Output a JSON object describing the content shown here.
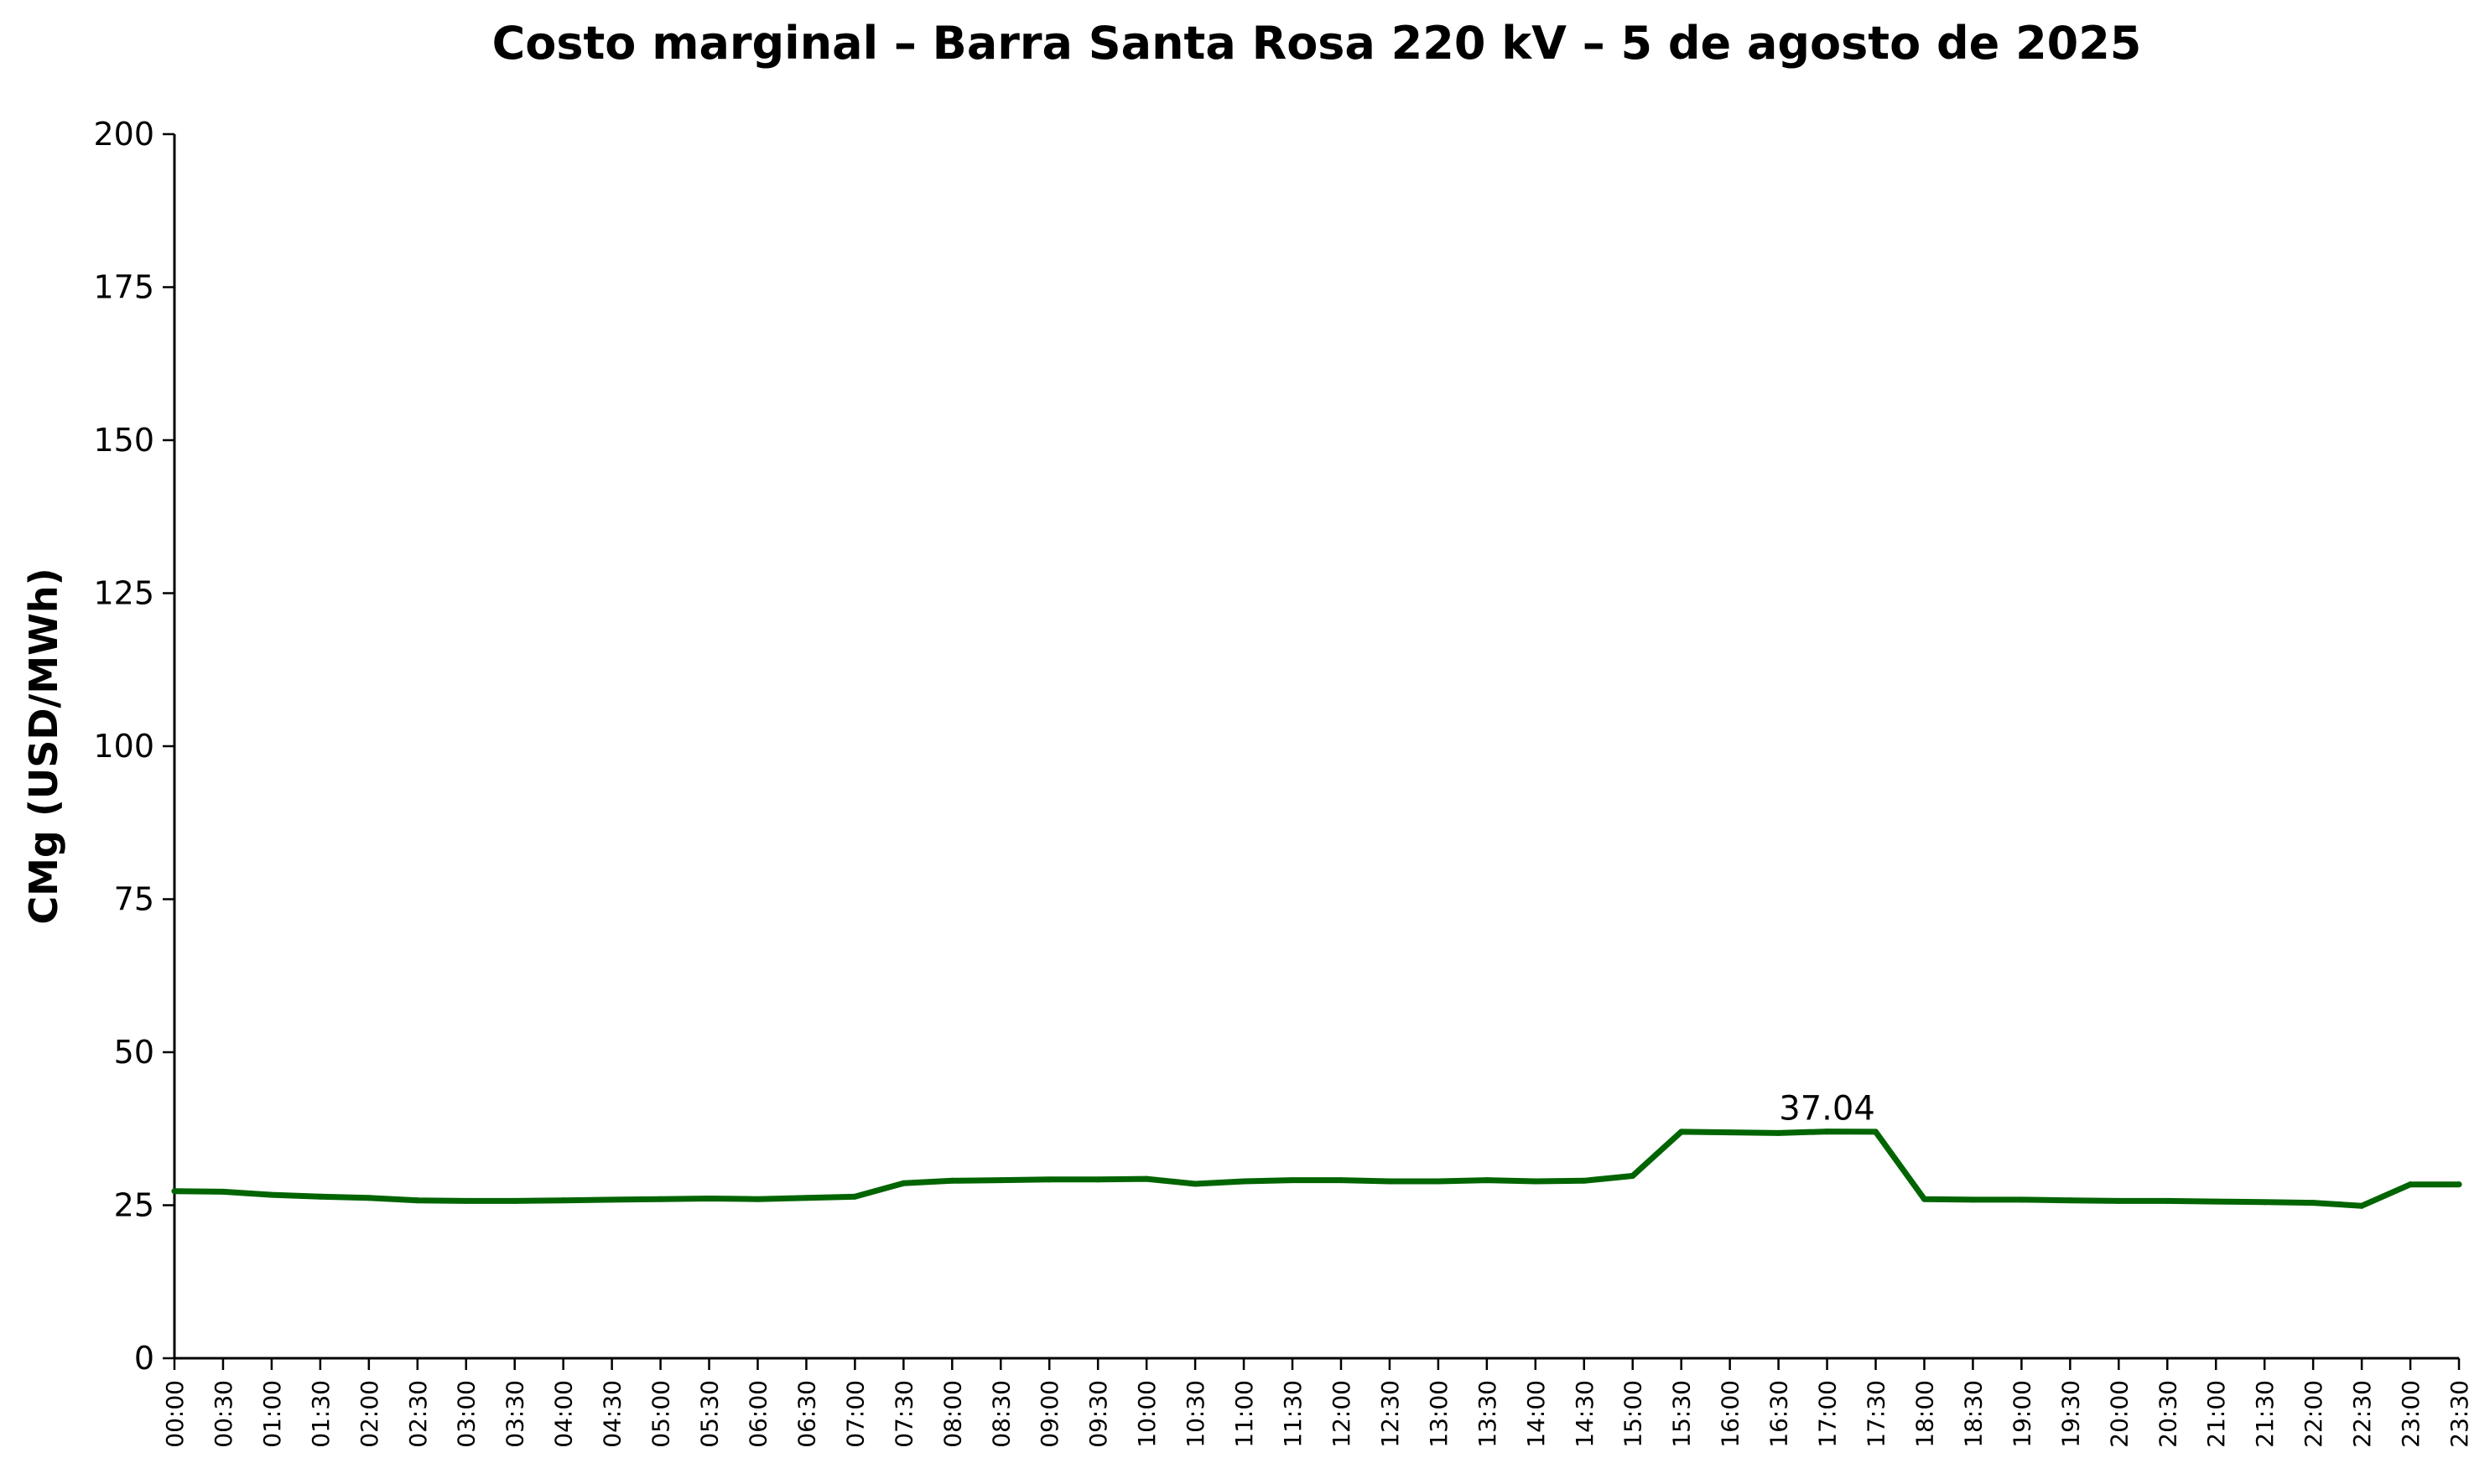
{
  "chart_data": {
    "type": "line",
    "title": "Costo marginal – Barra Santa Rosa 220 kV – 5 de agosto de 2025",
    "xlabel": "",
    "ylabel": "CMg (USD/MWh)",
    "ylim": [
      0,
      200
    ],
    "yticks": [
      0,
      25,
      50,
      75,
      100,
      125,
      150,
      175,
      200
    ],
    "grid": false,
    "categories": [
      "00:00",
      "00:30",
      "01:00",
      "01:30",
      "02:00",
      "02:30",
      "03:00",
      "03:30",
      "04:00",
      "04:30",
      "05:00",
      "05:30",
      "06:00",
      "06:30",
      "07:00",
      "07:30",
      "08:00",
      "08:30",
      "09:00",
      "09:30",
      "10:00",
      "10:30",
      "11:00",
      "11:30",
      "12:00",
      "12:30",
      "13:00",
      "13:30",
      "14:00",
      "14:30",
      "15:00",
      "15:30",
      "16:00",
      "16:30",
      "17:00",
      "17:30",
      "18:00",
      "18:30",
      "19:00",
      "19:30",
      "20:00",
      "20:30",
      "21:00",
      "21:30",
      "22:00",
      "22:30",
      "23:00",
      "23:30"
    ],
    "series": [
      {
        "color": "#006400",
        "values": [
          27.3,
          27.2,
          26.7,
          26.4,
          26.2,
          25.8,
          25.7,
          25.7,
          25.8,
          25.9,
          26.0,
          26.1,
          26.0,
          26.2,
          26.4,
          28.6,
          29.0,
          29.1,
          29.2,
          29.2,
          29.3,
          28.5,
          28.9,
          29.1,
          29.1,
          28.9,
          28.9,
          29.1,
          28.9,
          29.0,
          29.8,
          37.0,
          36.9,
          36.8,
          37.04,
          37.0,
          26.0,
          25.9,
          25.9,
          25.8,
          25.7,
          25.7,
          25.6,
          25.5,
          25.4,
          24.9,
          28.4,
          28.4
        ]
      }
    ],
    "annotations": [
      {
        "category": "17:00",
        "value": 37.04,
        "text": "37.04"
      }
    ]
  }
}
